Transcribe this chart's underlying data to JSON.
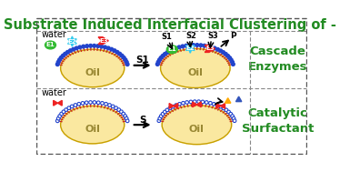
{
  "title": "Substrate Induced Interfacial Clustering of -",
  "title_color": "#228B22",
  "title_fontsize": 10.5,
  "background_color": "#FFFFFF",
  "oil_color": "#FAE8A0",
  "oil_edge_color": "#C8A000",
  "surf_head_color_top": "#2244CC",
  "surf_tail_color": "#CC2222",
  "surf_head_color_bottom": "#FFFFFF",
  "surf_head_edge_bottom": "#2244CC",
  "label_color": "#228B22",
  "label_fontsize": 9.5,
  "enzyme1_color": "#33BB33",
  "enzyme2_color": "#33CCEE",
  "enzyme3_color": "#EE2222",
  "bowtie_color": "#EE2222",
  "tri_yellow": "#FFAA00",
  "tri_blue": "#3355BB",
  "water_label_fontsize": 7,
  "oil_label_fontsize": 8,
  "cascade_label": "Cascade\nEnzymes",
  "catalytic_label": "Catalytic\nSurfactant",
  "s1_label": "S1",
  "s_label": "S",
  "arrow_lw": 1.5,
  "border_dash": [
    4,
    2
  ]
}
